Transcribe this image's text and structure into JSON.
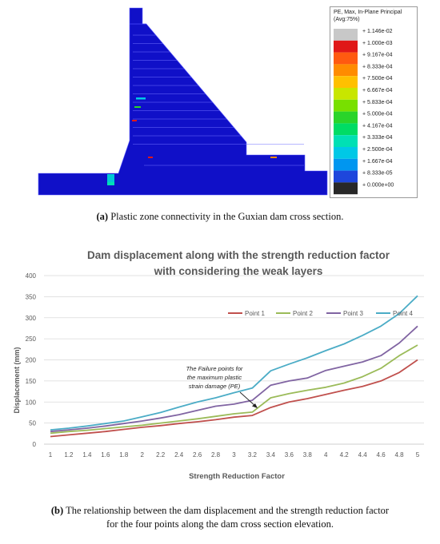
{
  "figure_a": {
    "legend": {
      "title_lines": [
        "PE, Max, In-Plane Principal",
        "(Avg:75%)"
      ],
      "levels": [
        {
          "label": "+ 1.146e-02",
          "color": "#c8c8c8"
        },
        {
          "label": "+ 1.000e-03",
          "color": "#e01818"
        },
        {
          "label": "+ 9.167e-04",
          "color": "#ff5a10"
        },
        {
          "label": "+ 8.333e-04",
          "color": "#ff8c00"
        },
        {
          "label": "+ 7.500e-04",
          "color": "#ffc000"
        },
        {
          "label": "+ 6.667e-04",
          "color": "#c8e600"
        },
        {
          "label": "+ 5.833e-04",
          "color": "#78e000"
        },
        {
          "label": "+ 5.000e-04",
          "color": "#2ad42a"
        },
        {
          "label": "+ 4.167e-04",
          "color": "#00dc64"
        },
        {
          "label": "+ 3.333e-04",
          "color": "#00e0b4"
        },
        {
          "label": "+ 2.500e-04",
          "color": "#00c8e6"
        },
        {
          "label": "+ 1.667e-04",
          "color": "#0096f0"
        },
        {
          "label": "+ 8.333e-05",
          "color": "#1e46dc"
        },
        {
          "label": "+ 0.000e+00",
          "color": "#282828"
        }
      ]
    },
    "caption_label": "(a)",
    "caption_text": " Plastic zone connectivity in the Guxian dam cross section."
  },
  "figure_b": {
    "caption_label": "(b)",
    "caption_line1": " The relationship between the dam displacement and the strength reduction factor",
    "caption_line2": "for the four points along the dam cross section elevation."
  },
  "chart_data": {
    "type": "line",
    "title": "Dam displacement along with the strength reduction factor with considering the weak layers",
    "title_line1": "Dam displacement along with the strength reduction factor",
    "title_line2": "with considering the weak layers",
    "xlabel": "Strength Reduction Factor",
    "ylabel": "Displacement (mm)",
    "ylim": [
      0,
      400
    ],
    "yticks": [
      "0",
      "50",
      "100",
      "150",
      "200",
      "250",
      "300",
      "350",
      "400"
    ],
    "x": [
      "1",
      "1.2",
      "1.4",
      "1.6",
      "1.8",
      "2",
      "2.2",
      "2.4",
      "2.6",
      "2.8",
      "3",
      "3.2",
      "3.4",
      "3.6",
      "3.8",
      "4",
      "4.2",
      "4.4",
      "4.6",
      "4.8",
      "5"
    ],
    "grid": true,
    "legend_position": "top-right",
    "series": [
      {
        "name": "Point 1",
        "color": "#c0504d",
        "values": [
          18,
          22,
          26,
          30,
          35,
          40,
          44,
          49,
          53,
          58,
          64,
          68,
          87,
          100,
          108,
          118,
          128,
          137,
          150,
          170,
          200
        ]
      },
      {
        "name": "Point 2",
        "color": "#9bbb59",
        "values": [
          26,
          30,
          33,
          37,
          41,
          45,
          50,
          55,
          60,
          66,
          72,
          76,
          110,
          120,
          128,
          135,
          145,
          160,
          180,
          210,
          235
        ]
      },
      {
        "name": "Point 3",
        "color": "#8064a2",
        "values": [
          30,
          34,
          38,
          43,
          49,
          55,
          62,
          70,
          80,
          90,
          95,
          104,
          140,
          150,
          157,
          175,
          185,
          195,
          210,
          240,
          280
        ]
      },
      {
        "name": "Point 4",
        "color": "#4bacc6",
        "values": [
          34,
          38,
          43,
          49,
          55,
          65,
          75,
          88,
          100,
          110,
          122,
          133,
          174,
          190,
          205,
          222,
          238,
          258,
          280,
          310,
          352
        ]
      }
    ],
    "annotation": {
      "lines": [
        "The Failure points for",
        "the maximum plastic",
        "strain damage (PE)"
      ]
    }
  }
}
